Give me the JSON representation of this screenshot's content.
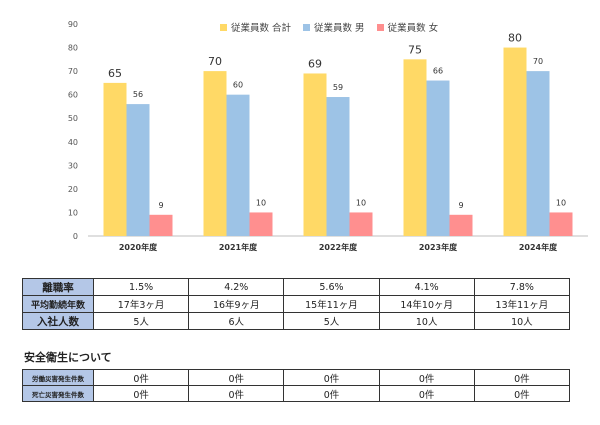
{
  "chart_data": {
    "type": "bar",
    "categories": [
      "2020年度",
      "2021年度",
      "2022年度",
      "2023年度",
      "2024年度"
    ],
    "series": [
      {
        "name": "従業員数 合計",
        "values": [
          65,
          70,
          69,
          75,
          80
        ],
        "color": "#ffd966"
      },
      {
        "name": "従業員数 男",
        "values": [
          56,
          60,
          59,
          66,
          70
        ],
        "color": "#9dc3e6"
      },
      {
        "name": "従業員数 女",
        "values": [
          9,
          10,
          10,
          9,
          10
        ],
        "color": "#ff8f8f"
      }
    ],
    "ylim": [
      0,
      90
    ],
    "yticks": [
      0,
      10,
      20,
      30,
      40,
      50,
      60,
      70,
      80,
      90
    ],
    "grid": false,
    "legend_position": "top",
    "title": "",
    "xlabel": "",
    "ylabel": ""
  },
  "stats_table": {
    "rows": [
      {
        "label": "離職率",
        "values": [
          "1.5%",
          "4.2%",
          "5.6%",
          "4.1%",
          "7.8%"
        ]
      },
      {
        "label": "平均勤続年数",
        "values": [
          "17年3ヶ月",
          "16年9ヶ月",
          "15年11ヶ月",
          "14年10ヶ月",
          "13年11ヶ月"
        ]
      },
      {
        "label": "入社人数",
        "values": [
          "5人",
          "6人",
          "5人",
          "10人",
          "10人"
        ]
      }
    ]
  },
  "safety": {
    "title": "安全衛生について",
    "rows": [
      {
        "label": "労働災害発生件数",
        "values": [
          "0件",
          "0件",
          "0件",
          "0件",
          "0件"
        ]
      },
      {
        "label": "死亡災害発生件数",
        "values": [
          "0件",
          "0件",
          "0件",
          "0件",
          "0件"
        ]
      }
    ]
  }
}
